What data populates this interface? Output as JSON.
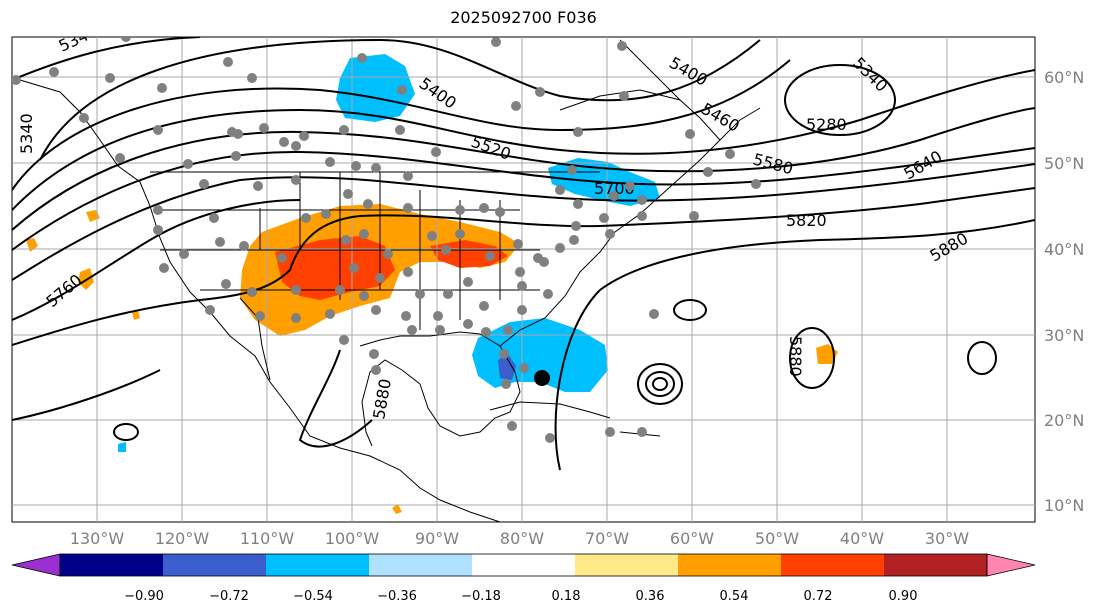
{
  "title": "2025092700 F036",
  "lat_labels": [
    "60°N",
    "50°N",
    "40°N",
    "30°N",
    "20°N",
    "10°N"
  ],
  "lon_labels": [
    "130°W",
    "120°W",
    "110°W",
    "100°W",
    "90°W",
    "80°W",
    "70°W",
    "60°W",
    "50°W",
    "40°W",
    "30°W"
  ],
  "contour_labels": [
    "5340",
    "5400",
    "5460",
    "5520",
    "5580",
    "5640",
    "5700",
    "5760",
    "5820",
    "5880",
    "5280",
    "5340",
    "5880",
    "5880"
  ],
  "colorbar": {
    "ticks": [
      "−0.90",
      "−0.72",
      "−0.54",
      "−0.36",
      "−0.18",
      "0.18",
      "0.36",
      "0.54",
      "0.72",
      "0.90"
    ],
    "colors": [
      "#9b30d0",
      "#00008b",
      "#3a5fcd",
      "#00bfff",
      "#b0e2ff",
      "#ffffff",
      "#ffe98a",
      "#ffa000",
      "#ff4000",
      "#b22222",
      "#ff85b0"
    ]
  }
}
